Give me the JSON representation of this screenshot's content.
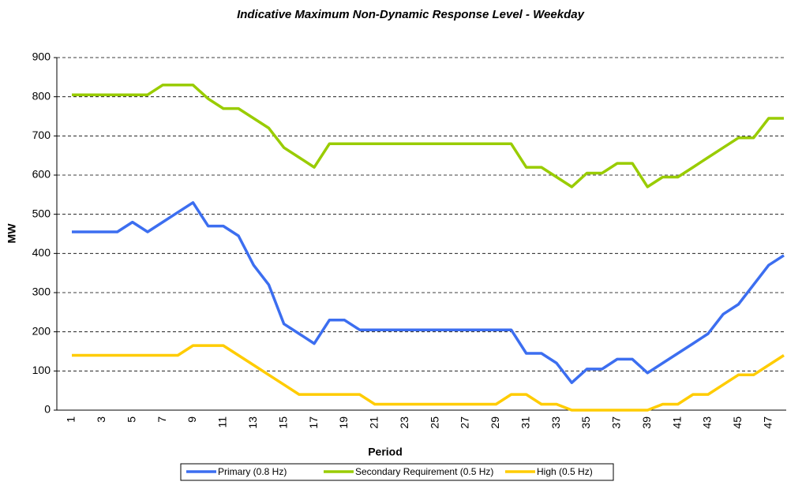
{
  "chart_data": {
    "type": "line",
    "title": "Indicative Maximum Non-Dynamic Response Level - Weekday",
    "x_label": "Period",
    "y_label": "MW",
    "categories": [
      1,
      null,
      3,
      null,
      5,
      null,
      7,
      null,
      9,
      null,
      11,
      null,
      13,
      null,
      15,
      null,
      17,
      null,
      19,
      null,
      21,
      null,
      23,
      null,
      25,
      null,
      27,
      null,
      29,
      null,
      31,
      null,
      33,
      null,
      35,
      null,
      37,
      null,
      39,
      null,
      41,
      null,
      43,
      null,
      45,
      null,
      47,
      null
    ],
    "series": [
      {
        "name": "Primary (0.8 Hz)",
        "color": "#3c6ef0",
        "values": [
          455,
          455,
          455,
          455,
          480,
          455,
          480,
          505,
          530,
          470,
          470,
          445,
          370,
          320,
          220,
          195,
          170,
          230,
          230,
          205,
          205,
          205,
          205,
          205,
          205,
          205,
          205,
          205,
          205,
          205,
          145,
          145,
          120,
          70,
          105,
          105,
          130,
          130,
          95,
          120,
          145,
          170,
          195,
          245,
          270,
          320,
          370,
          395
        ]
      },
      {
        "name": "Secondary Requirement (0.5 Hz)",
        "color": "#99cc00",
        "values": [
          805,
          805,
          805,
          805,
          805,
          805,
          830,
          830,
          830,
          795,
          770,
          770,
          745,
          720,
          670,
          645,
          620,
          680,
          680,
          680,
          680,
          680,
          680,
          680,
          680,
          680,
          680,
          680,
          680,
          680,
          620,
          620,
          595,
          570,
          605,
          605,
          630,
          630,
          570,
          595,
          595,
          620,
          645,
          670,
          695,
          695,
          745,
          745
        ]
      },
      {
        "name": "High (0.5 Hz)",
        "color": "#ffcc00",
        "values": [
          140,
          140,
          140,
          140,
          140,
          140,
          140,
          140,
          165,
          165,
          165,
          140,
          115,
          90,
          65,
          40,
          40,
          40,
          40,
          40,
          15,
          15,
          15,
          15,
          15,
          15,
          15,
          15,
          15,
          40,
          40,
          15,
          15,
          0,
          0,
          0,
          0,
          0,
          0,
          15,
          15,
          40,
          40,
          65,
          90,
          90,
          115,
          140
        ]
      }
    ],
    "ylim": [
      0,
      900
    ],
    "yticks": [
      0,
      100,
      200,
      300,
      400,
      500,
      600,
      700,
      800,
      900
    ],
    "grid": true,
    "legend": "bottom"
  }
}
